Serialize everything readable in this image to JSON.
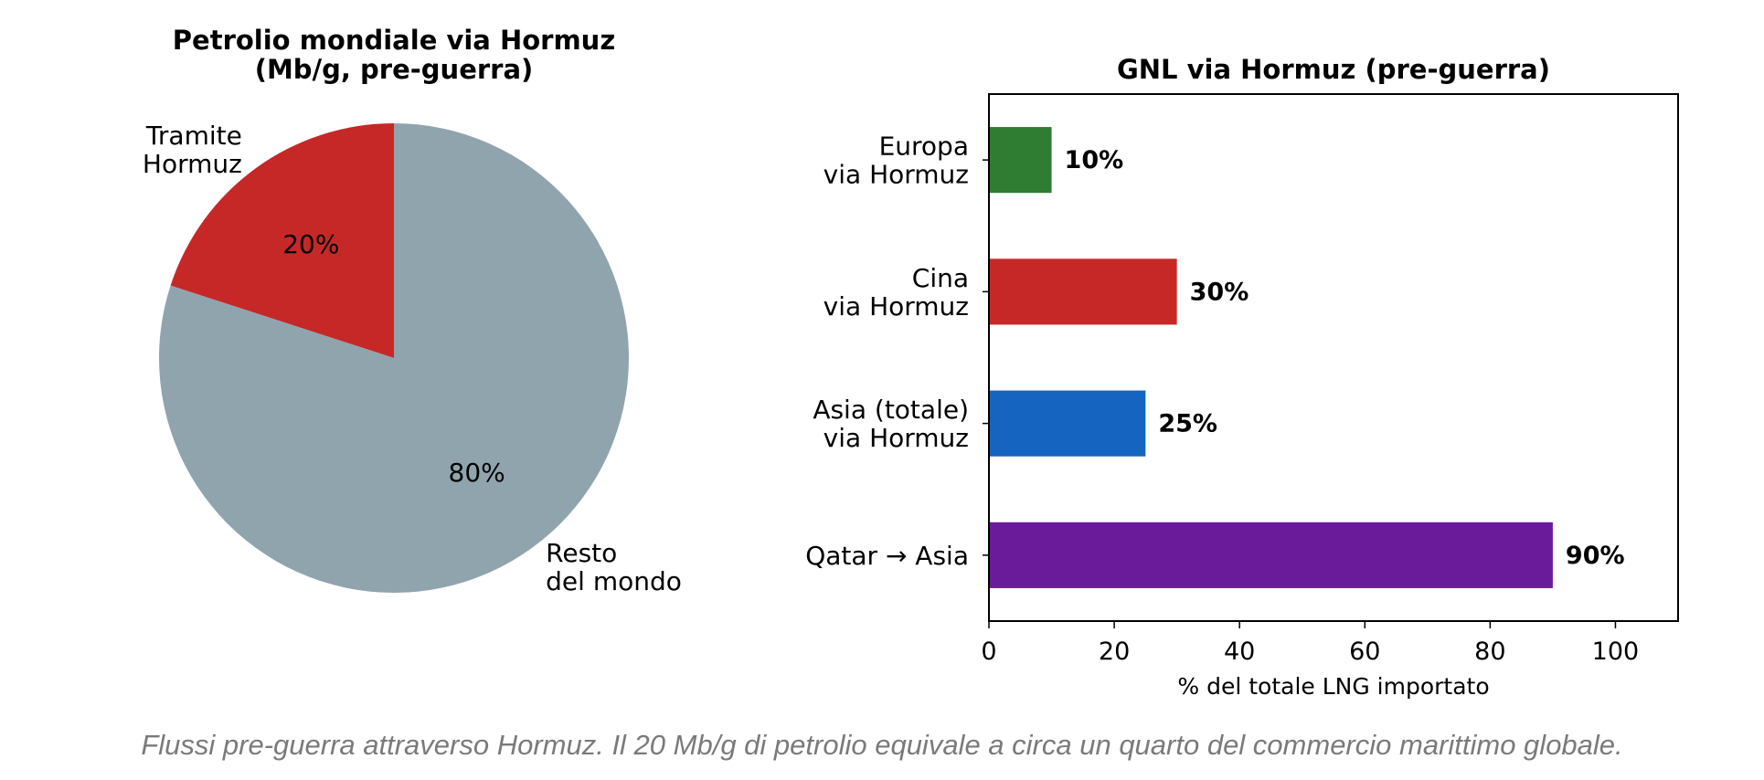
{
  "chart_data": [
    {
      "type": "pie",
      "title": [
        "Petrolio mondiale via Hormuz",
        "(Mb/g, pre-guerra)"
      ],
      "slices": [
        {
          "label": [
            "Tramite",
            "Hormuz"
          ],
          "value": 20,
          "pct_label": "20%",
          "color": "#c62828"
        },
        {
          "label": [
            "Resto",
            "del mondo"
          ],
          "value": 80,
          "pct_label": "80%",
          "color": "#90a4ae"
        }
      ]
    },
    {
      "type": "bar",
      "orientation": "horizontal",
      "title": "GNL via Hormuz (pre-guerra)",
      "xlabel": "% del totale LNG importato",
      "ylabel": "",
      "xlim": [
        0,
        110
      ],
      "xticks": [
        0,
        20,
        40,
        60,
        80,
        100
      ],
      "categories": [
        [
          "Europa",
          "via Hormuz"
        ],
        [
          "Cina",
          "via Hormuz"
        ],
        [
          "Asia (totale)",
          "via Hormuz"
        ],
        [
          "Qatar → Asia"
        ]
      ],
      "values": [
        10,
        30,
        25,
        90
      ],
      "value_labels": [
        "10%",
        "30%",
        "25%",
        "90%"
      ],
      "colors": [
        "#2e7d32",
        "#c62828",
        "#1565c0",
        "#6a1b9a"
      ],
      "grid": false
    }
  ],
  "caption": "Flussi pre-guerra attraverso Hormuz. Il 20 Mb/g di petrolio equivale a circa un quarto del commercio marittimo globale."
}
